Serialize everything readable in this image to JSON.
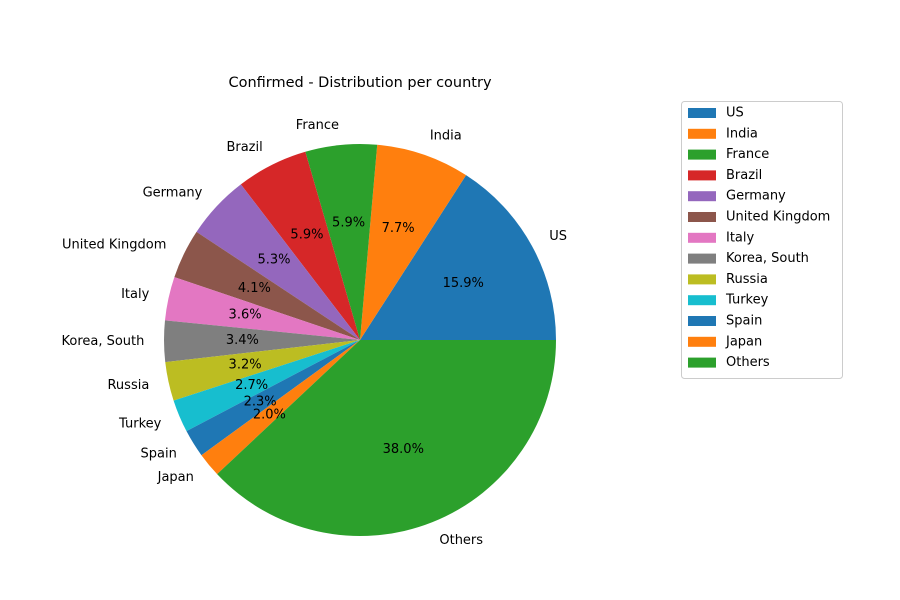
{
  "chart_data": {
    "type": "pie",
    "title": "Confirmed - Distribution per country",
    "categories": [
      "US",
      "India",
      "France",
      "Brazil",
      "Germany",
      "United Kingdom",
      "Italy",
      "Korea, South",
      "Russia",
      "Turkey",
      "Spain",
      "Japan",
      "Others"
    ],
    "values": [
      15.9,
      7.7,
      5.9,
      5.9,
      5.3,
      4.1,
      3.6,
      3.4,
      3.2,
      2.7,
      2.3,
      2.0,
      38.0
    ],
    "value_labels": [
      "15.9%",
      "7.7%",
      "5.9%",
      "5.9%",
      "5.3%",
      "4.1%",
      "3.6%",
      "3.4%",
      "3.2%",
      "2.7%",
      "2.3%",
      "2.0%",
      "38.0%"
    ],
    "colors": [
      "#1f77b4",
      "#ff7f0e",
      "#2ca02c",
      "#d62728",
      "#9467bd",
      "#8c564b",
      "#e377c2",
      "#7f7f7f",
      "#bcbd22",
      "#17becf",
      "#1f77b4",
      "#ff7f0e",
      "#2ca02c"
    ],
    "start_angle_deg": 0,
    "direction": "counterclockwise",
    "legend_position": "right"
  }
}
